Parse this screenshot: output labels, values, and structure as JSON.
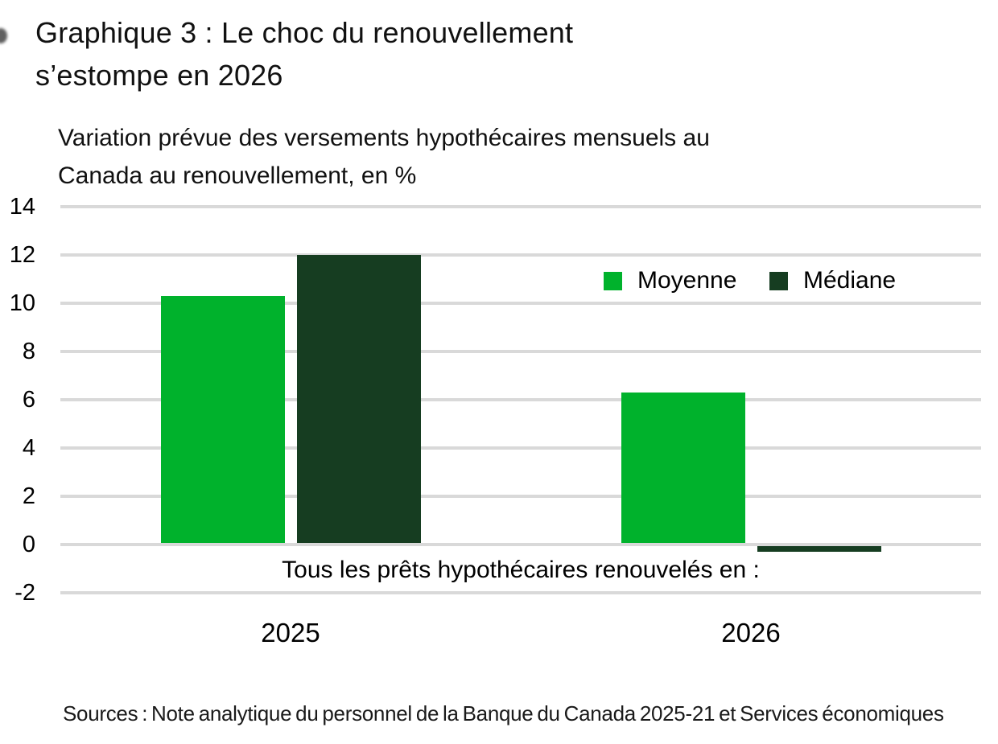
{
  "title": {
    "line1": "Graphique 3 : Le choc du renouvellement",
    "line2": "s’estompe en 2026"
  },
  "subtitle": {
    "line1": "Variation prévue des versements hypothécaires mensuels au",
    "line2": "Canada au renouvellement, en %"
  },
  "legend": {
    "items": [
      {
        "label": "Moyenne",
        "color": "#00B22C"
      },
      {
        "label": "Médiane",
        "color": "#163D21"
      }
    ]
  },
  "source_note": "Sources : Note analytique du personnel de la Banque du Canada 2025-21 et Services économiques",
  "colors": {
    "moyenne": "#00B22C",
    "mediane": "#163D21",
    "gridline": "#d9d9d9",
    "text": "#000000"
  },
  "chart_data": {
    "type": "bar",
    "title": "Graphique 3 : Le choc du renouvellement s’estompe en 2026",
    "subtitle": "Variation prévue des versements hypothécaires mensuels au Canada au renouvellement, en %",
    "categories": [
      "2025",
      "2026"
    ],
    "series": [
      {
        "name": "Moyenne",
        "color": "#00B22C",
        "values": [
          10.3,
          6.3
        ]
      },
      {
        "name": "Médiane",
        "color": "#163D21",
        "values": [
          12.0,
          -0.3
        ]
      }
    ],
    "xlabel": "Tous les prêts hypothécaires renouvelés en :",
    "ylabel": "",
    "ylim": [
      -2,
      14
    ],
    "yticks": [
      14,
      12,
      10,
      8,
      6,
      4,
      2,
      0,
      -2
    ],
    "grid": true,
    "legend_position": "inside-upper-right",
    "legend": [
      "Moyenne",
      "Médiane"
    ]
  }
}
